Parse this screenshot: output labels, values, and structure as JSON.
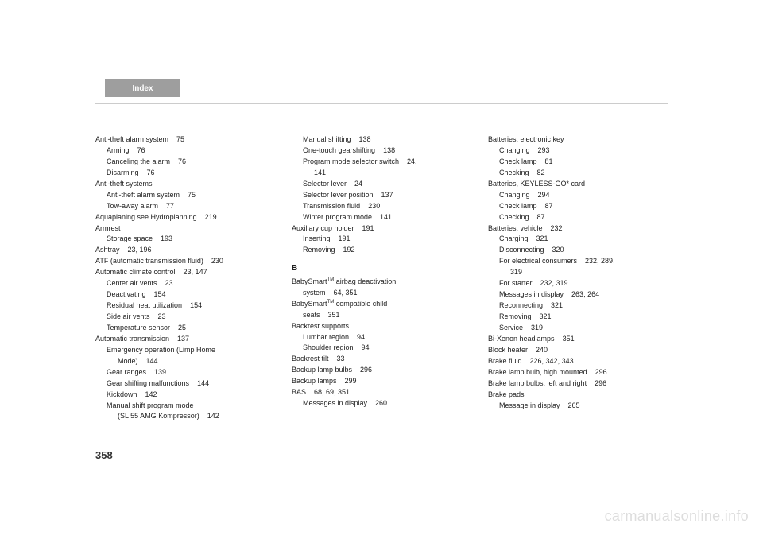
{
  "header": {
    "label": "Index"
  },
  "pageNumber": "358",
  "watermark": "carmanualsonline.info",
  "col1": [
    {
      "t": "Anti-theft alarm system",
      "p": "75",
      "cls": "entry"
    },
    {
      "t": "Arming",
      "p": "76",
      "cls": "sub"
    },
    {
      "t": "Canceling the alarm",
      "p": "76",
      "cls": "sub"
    },
    {
      "t": "Disarming",
      "p": "76",
      "cls": "sub"
    },
    {
      "t": "Anti-theft systems",
      "p": "",
      "cls": "entry"
    },
    {
      "t": "Anti-theft alarm system",
      "p": "75",
      "cls": "sub"
    },
    {
      "t": "Tow-away alarm",
      "p": "77",
      "cls": "sub"
    },
    {
      "t": "Aquaplaning see Hydroplanning",
      "p": "219",
      "cls": "entry"
    },
    {
      "t": "Armrest",
      "p": "",
      "cls": "entry"
    },
    {
      "t": "Storage space",
      "p": "193",
      "cls": "sub"
    },
    {
      "t": "Ashtray",
      "p": "23, 196",
      "cls": "entry"
    },
    {
      "t": "ATF (automatic transmission fluid)",
      "p": "230",
      "cls": "entry"
    },
    {
      "t": "Automatic climate control",
      "p": "23, 147",
      "cls": "entry"
    },
    {
      "t": "Center air vents",
      "p": "23",
      "cls": "sub"
    },
    {
      "t": "Deactivating",
      "p": "154",
      "cls": "sub"
    },
    {
      "t": "Residual heat utilization",
      "p": "154",
      "cls": "sub"
    },
    {
      "t": "Side air vents",
      "p": "23",
      "cls": "sub"
    },
    {
      "t": "Temperature sensor",
      "p": "25",
      "cls": "sub"
    },
    {
      "t": "Automatic transmission",
      "p": "137",
      "cls": "entry"
    },
    {
      "t": "Emergency operation (Limp Home",
      "p": "",
      "cls": "sub"
    },
    {
      "t": "Mode)",
      "p": "144",
      "cls": "subsub"
    },
    {
      "t": "Gear ranges",
      "p": "139",
      "cls": "sub"
    },
    {
      "t": "Gear shifting malfunctions",
      "p": "144",
      "cls": "sub"
    },
    {
      "t": "Kickdown",
      "p": "142",
      "cls": "sub"
    },
    {
      "t": "Manual shift program mode",
      "p": "",
      "cls": "sub"
    },
    {
      "t": "(SL 55 AMG Kompressor)",
      "p": "142",
      "cls": "subsub"
    }
  ],
  "col2": [
    {
      "t": "Manual shifting",
      "p": "138",
      "cls": "sub"
    },
    {
      "t": "One-touch gearshifting",
      "p": "138",
      "cls": "sub"
    },
    {
      "t": "Program mode selector switch",
      "p": "24,",
      "cls": "sub"
    },
    {
      "t": "141",
      "p": "",
      "cls": "subsub"
    },
    {
      "t": "Selector lever",
      "p": "24",
      "cls": "sub"
    },
    {
      "t": "Selector lever position",
      "p": "137",
      "cls": "sub"
    },
    {
      "t": "Transmission fluid",
      "p": "230",
      "cls": "sub"
    },
    {
      "t": "Winter program mode",
      "p": "141",
      "cls": "sub"
    },
    {
      "t": "Auxiliary cup holder",
      "p": "191",
      "cls": "entry"
    },
    {
      "t": "Inserting",
      "p": "191",
      "cls": "sub"
    },
    {
      "t": "Removing",
      "p": "192",
      "cls": "sub"
    },
    {
      "t": "B",
      "p": "",
      "cls": "section-letter"
    },
    {
      "html": "BabySmart<sup>TM</sup> airbag deactivation",
      "p": "",
      "cls": "entry"
    },
    {
      "t": "system",
      "p": "64, 351",
      "cls": "sub"
    },
    {
      "html": "BabySmart<sup>TM</sup> compatible child",
      "p": "",
      "cls": "entry"
    },
    {
      "t": "seats",
      "p": "351",
      "cls": "sub"
    },
    {
      "t": "Backrest supports",
      "p": "",
      "cls": "entry"
    },
    {
      "t": "Lumbar region",
      "p": "94",
      "cls": "sub"
    },
    {
      "t": "Shoulder region",
      "p": "94",
      "cls": "sub"
    },
    {
      "t": "Backrest tilt",
      "p": "33",
      "cls": "entry"
    },
    {
      "t": "Backup lamp bulbs",
      "p": "296",
      "cls": "entry"
    },
    {
      "t": "Backup lamps",
      "p": "299",
      "cls": "entry"
    },
    {
      "t": "BAS",
      "p": "68, 69, 351",
      "cls": "entry"
    },
    {
      "t": "Messages in display",
      "p": "260",
      "cls": "sub"
    }
  ],
  "col3": [
    {
      "t": "Batteries, electronic key",
      "p": "",
      "cls": "entry"
    },
    {
      "t": "Changing",
      "p": "293",
      "cls": "sub"
    },
    {
      "t": "Check lamp",
      "p": "81",
      "cls": "sub"
    },
    {
      "t": "Checking",
      "p": "82",
      "cls": "sub"
    },
    {
      "t": "Batteries, KEYLESS-GO* card",
      "p": "",
      "cls": "entry"
    },
    {
      "t": "Changing",
      "p": "294",
      "cls": "sub"
    },
    {
      "t": "Check lamp",
      "p": "87",
      "cls": "sub"
    },
    {
      "t": "Checking",
      "p": "87",
      "cls": "sub"
    },
    {
      "t": "Batteries, vehicle",
      "p": "232",
      "cls": "entry"
    },
    {
      "t": "Charging",
      "p": "321",
      "cls": "sub"
    },
    {
      "t": "Disconnecting",
      "p": "320",
      "cls": "sub"
    },
    {
      "t": "For electrical consumers",
      "p": "232, 289,",
      "cls": "sub"
    },
    {
      "t": "319",
      "p": "",
      "cls": "subsub"
    },
    {
      "t": "For starter",
      "p": "232, 319",
      "cls": "sub"
    },
    {
      "t": "Messages in display",
      "p": "263, 264",
      "cls": "sub"
    },
    {
      "t": "Reconnecting",
      "p": "321",
      "cls": "sub"
    },
    {
      "t": "Removing",
      "p": "321",
      "cls": "sub"
    },
    {
      "t": "Service",
      "p": "319",
      "cls": "sub"
    },
    {
      "t": "Bi-Xenon headlamps",
      "p": "351",
      "cls": "entry"
    },
    {
      "t": "Block heater",
      "p": "240",
      "cls": "entry"
    },
    {
      "t": "Brake fluid",
      "p": "226, 342, 343",
      "cls": "entry"
    },
    {
      "t": "Brake lamp bulb, high mounted",
      "p": "296",
      "cls": "entry"
    },
    {
      "t": "Brake lamp bulbs, left and right",
      "p": "296",
      "cls": "entry"
    },
    {
      "t": "Brake pads",
      "p": "",
      "cls": "entry"
    },
    {
      "t": "Message in display",
      "p": "265",
      "cls": "sub"
    }
  ]
}
